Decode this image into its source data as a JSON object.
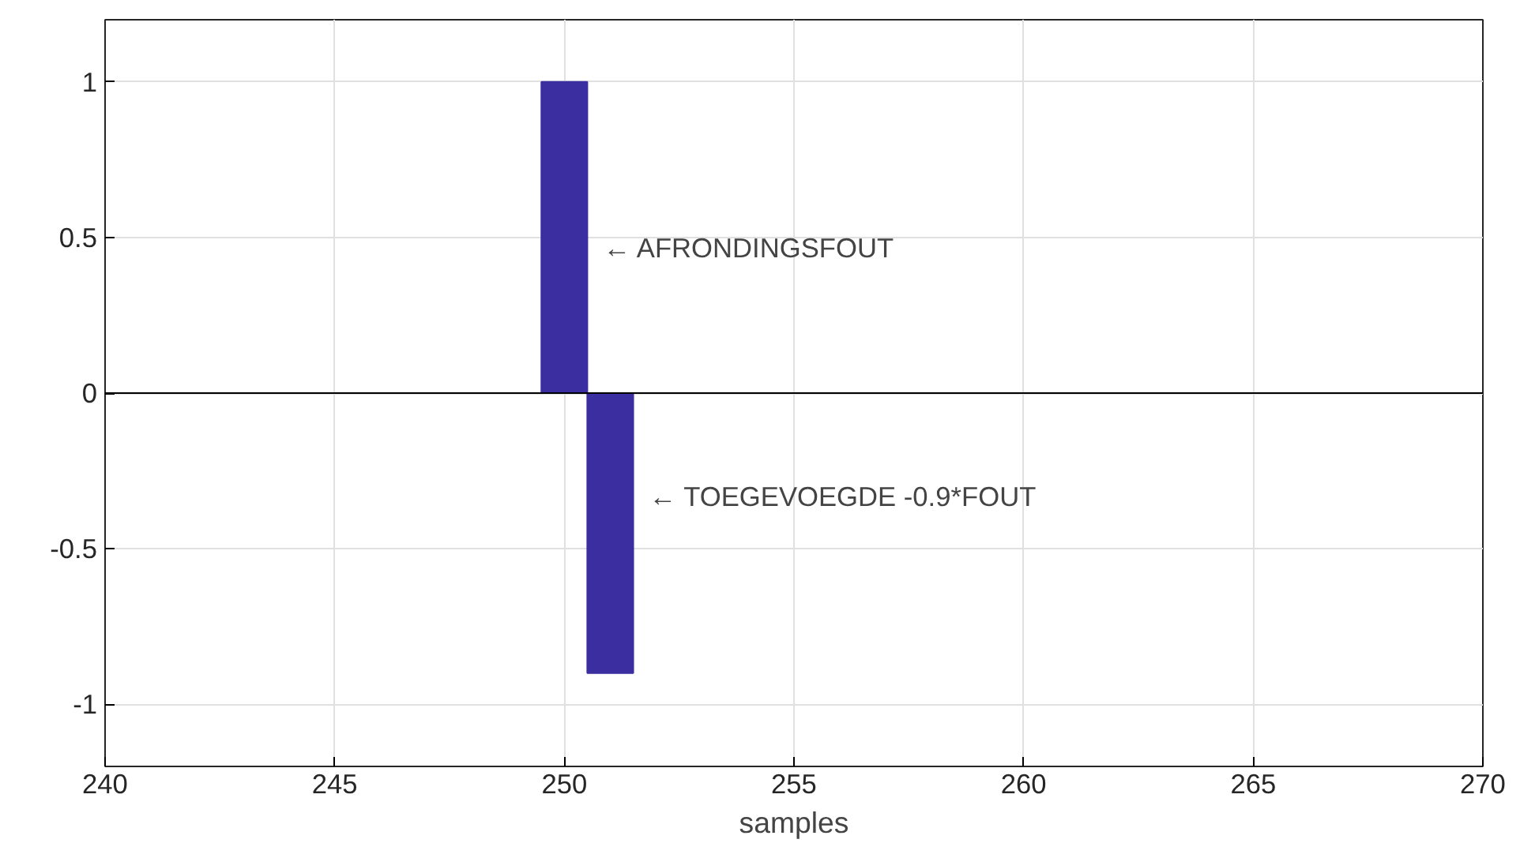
{
  "chart_data": {
    "type": "bar",
    "x": [
      250,
      251
    ],
    "values": [
      1,
      -0.9
    ],
    "color": "#3a2ea0",
    "xlim": [
      240,
      270
    ],
    "xticks": [
      240,
      245,
      250,
      255,
      260,
      265,
      270
    ],
    "ylim": [
      -1.2,
      1.2
    ],
    "yticks": [
      -1,
      -0.5,
      0,
      0.5,
      1
    ],
    "xlabel": "samples",
    "grid": true,
    "ref_lines": [
      {
        "axis": "y",
        "value": 0,
        "color": "#000000"
      }
    ],
    "annotations": [
      "← AFRONDINGSFOUT",
      "← TOEGEVOEGDE -0.9*FOUT"
    ]
  }
}
